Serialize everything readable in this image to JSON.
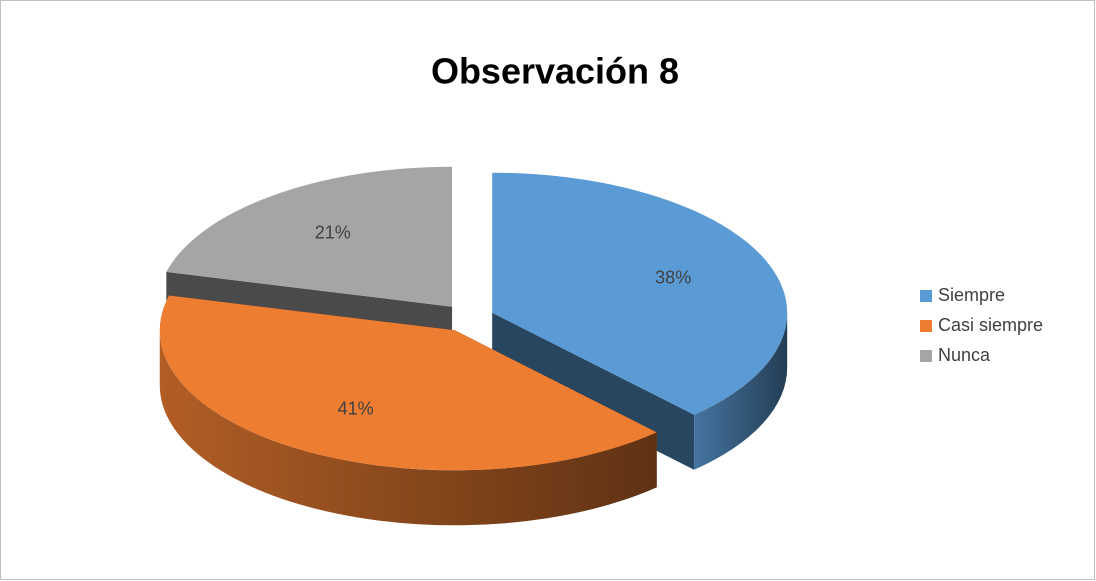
{
  "chart_data": {
    "type": "pie3d",
    "title": "Observación 8",
    "categories": [
      "Siempre",
      "Casi siempre",
      "Nunca"
    ],
    "values": [
      38,
      41,
      21
    ],
    "value_labels": [
      "38%",
      "41%",
      "21%"
    ],
    "colors": [
      "#5b9bd5",
      "#ed7d31",
      "#a5a5a5"
    ],
    "legend": "right"
  }
}
